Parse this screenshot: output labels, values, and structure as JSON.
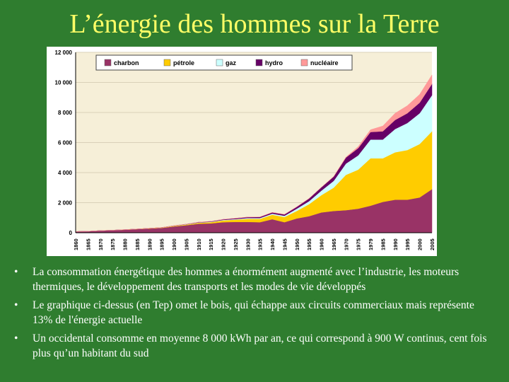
{
  "slide": {
    "title": "L’énergie des hommes sur la Terre",
    "bullet_symbol": "•",
    "bullets": [
      "La consommation énergétique des hommes a énormément augmenté avec l’industrie, les moteurs thermiques, le développement des transports et les modes de vie développés",
      "Le graphique ci-dessus (en Tep) omet le bois, qui échappe aux circuits commerciaux mais représente 13% de l'énergie actuelle",
      "Un occidental consomme en moyenne  8 000 kWh par an, ce qui correspond à 900 W continus, cent fois plus qu’un habitant du sud"
    ]
  },
  "chart_data": {
    "type": "area",
    "stacked": true,
    "x": [
      1860,
      1865,
      1870,
      1875,
      1880,
      1885,
      1890,
      1895,
      1900,
      1905,
      1910,
      1915,
      1920,
      1925,
      1930,
      1935,
      1940,
      1945,
      1950,
      1955,
      1960,
      1965,
      1970,
      1975,
      1979,
      1985,
      1990,
      1995,
      2000,
      2005
    ],
    "x_tick_labels": [
      "1860",
      "1865",
      "1870",
      "1875",
      "1880",
      "1885",
      "1890",
      "1895",
      "1900",
      "1905",
      "1910",
      "1915",
      "1920",
      "1925",
      "1930",
      "1935",
      "1940",
      "1945",
      "1950",
      "1955",
      "1960",
      "1965",
      "1970",
      "1975",
      "1979",
      "1985",
      "1990",
      "1995",
      "2000",
      "2005"
    ],
    "ylim": [
      0,
      12000
    ],
    "y_ticks": [
      0,
      2000,
      4000,
      6000,
      8000,
      10000,
      12000
    ],
    "y_tick_labels": [
      "0",
      "2 000",
      "4 000",
      "6 000",
      "8 000",
      "10 000",
      "12 000"
    ],
    "legend_position": "top",
    "grid": true,
    "series": [
      {
        "name": "charbon",
        "color": "#993366",
        "values": [
          80,
          100,
          140,
          170,
          200,
          240,
          280,
          320,
          420,
          500,
          600,
          620,
          700,
          720,
          720,
          700,
          900,
          700,
          950,
          1100,
          1350,
          1450,
          1500,
          1600,
          1800,
          2050,
          2200,
          2200,
          2350,
          2900
        ]
      },
      {
        "name": "pétrole",
        "color": "#ffcc00",
        "values": [
          0,
          0,
          0,
          0,
          5,
          10,
          15,
          20,
          30,
          40,
          60,
          80,
          120,
          150,
          200,
          220,
          300,
          350,
          500,
          800,
          1150,
          1550,
          2350,
          2600,
          3150,
          2900,
          3150,
          3300,
          3550,
          3850
        ]
      },
      {
        "name": "gaz",
        "color": "#ccffff",
        "values": [
          0,
          0,
          0,
          0,
          0,
          0,
          0,
          5,
          10,
          15,
          20,
          25,
          30,
          40,
          60,
          60,
          70,
          80,
          150,
          200,
          300,
          450,
          750,
          950,
          1250,
          1250,
          1550,
          1800,
          2050,
          2400
        ]
      },
      {
        "name": "hydro",
        "color": "#660066",
        "values": [
          0,
          0,
          0,
          0,
          0,
          0,
          0,
          5,
          10,
          15,
          20,
          30,
          40,
          50,
          60,
          70,
          80,
          90,
          120,
          180,
          220,
          280,
          400,
          480,
          500,
          550,
          600,
          650,
          700,
          750
        ]
      },
      {
        "name": "nucléaire",
        "color": "#ff9999",
        "values": [
          0,
          0,
          0,
          0,
          0,
          0,
          0,
          0,
          0,
          0,
          0,
          0,
          0,
          0,
          0,
          0,
          0,
          0,
          0,
          0,
          0,
          10,
          30,
          100,
          150,
          350,
          450,
          500,
          550,
          600
        ]
      }
    ]
  }
}
